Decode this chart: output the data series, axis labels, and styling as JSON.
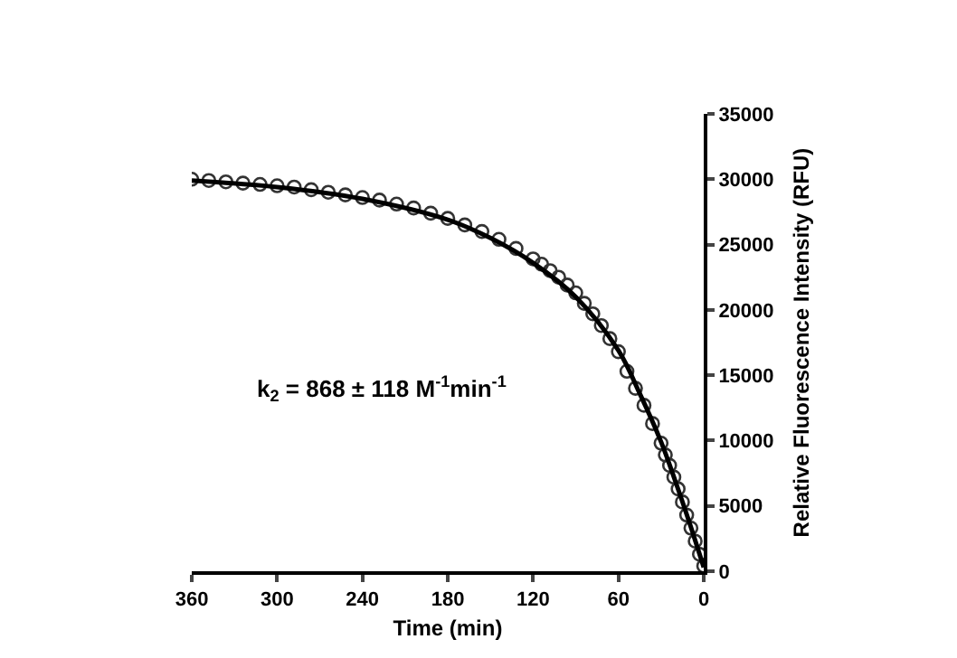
{
  "chart_data": {
    "type": "scatter",
    "xlabel": "Time (min)",
    "ylabel": "Relative Fluorescence Intensity (RFU)",
    "xlim": [
      360,
      0
    ],
    "xticks": [
      0,
      60,
      120,
      180,
      240,
      300,
      360
    ],
    "ylim": [
      0,
      35000
    ],
    "yticks": [
      0,
      5000,
      10000,
      15000,
      20000,
      25000,
      30000,
      35000
    ],
    "legend": false,
    "annotations": [
      "k$_{2}$ = 868 ± 118 M$^{-1}$min$^{-1}$"
    ],
    "series": [
      {
        "color": "#333333",
        "marker": "circle",
        "x": [
          0,
          3,
          6,
          9,
          12,
          15,
          18,
          21,
          24,
          27,
          30,
          36,
          42,
          48,
          54,
          60,
          66,
          72,
          78,
          84,
          90,
          96,
          102,
          108,
          114,
          120,
          132,
          144,
          156,
          168,
          180,
          192,
          204,
          216,
          228,
          240,
          252,
          264,
          276,
          288,
          300,
          312,
          324,
          336,
          348,
          360
        ],
        "values": [
          400,
          1300,
          2300,
          3300,
          4300,
          5300,
          6300,
          7200,
          8100,
          8900,
          9800,
          11300,
          12700,
          14000,
          15300,
          16800,
          17800,
          18800,
          19700,
          20500,
          21300,
          21900,
          22500,
          23000,
          23500,
          23900,
          24700,
          25400,
          26000,
          26500,
          27000,
          27400,
          27800,
          28100,
          28400,
          28600,
          28800,
          29000,
          29200,
          29400,
          29500,
          29600,
          29700,
          29800,
          29900,
          30000
        ]
      },
      {
        "type": "line",
        "color": "#000000",
        "line_style": "solid",
        "x": [
          0,
          10,
          20,
          30,
          45,
          60,
          90,
          120,
          150,
          180,
          240,
          300,
          360
        ],
        "values": [
          300,
          3700,
          6900,
          9900,
          13600,
          16900,
          21000,
          23600,
          25500,
          26900,
          28500,
          29400,
          29900
        ]
      }
    ]
  }
}
